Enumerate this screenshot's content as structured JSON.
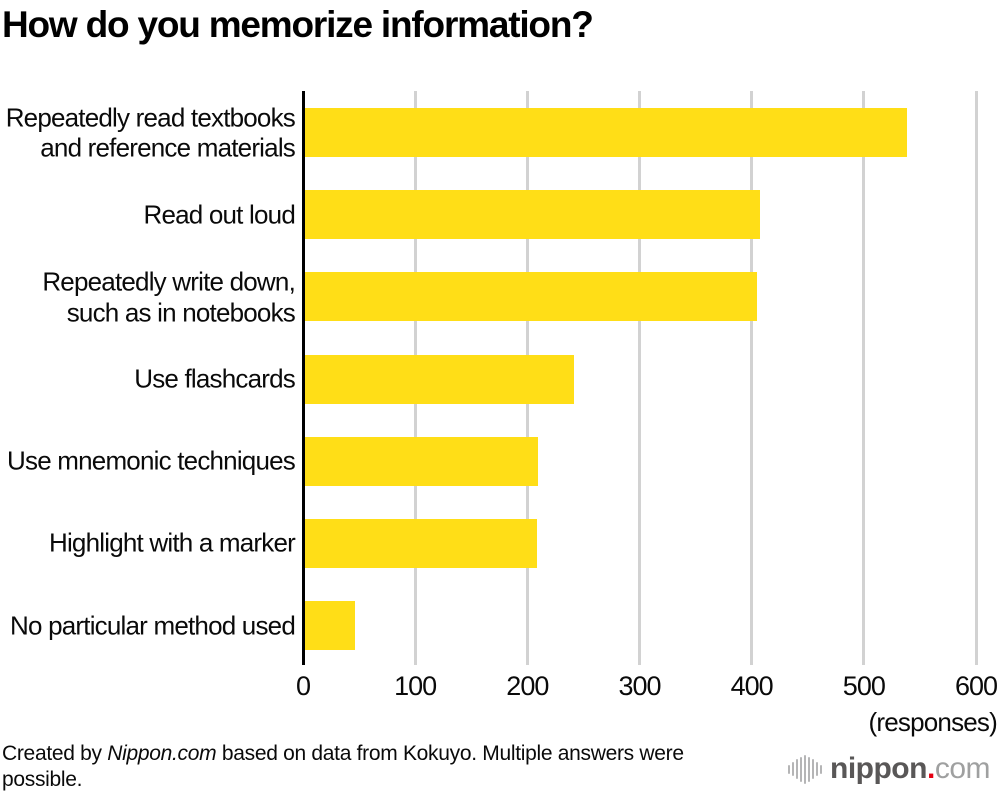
{
  "title": "How do you memorize information?",
  "chart_data": {
    "type": "bar",
    "orientation": "horizontal",
    "title": "How do you memorize information?",
    "categories": [
      "Repeatedly read textbooks\nand reference materials",
      "Read out loud",
      "Repeatedly write down,\nsuch as in notebooks",
      "Use flashcards",
      "Use mnemonic techniques",
      "Highlight with a marker",
      "No particular method used"
    ],
    "values": [
      537,
      406,
      403,
      240,
      208,
      207,
      45
    ],
    "xlim": [
      0,
      600
    ],
    "xticks": [
      0,
      100,
      200,
      300,
      400,
      500,
      600
    ],
    "xlabel": "(responses)",
    "ylabel": "",
    "grid": true,
    "legend": false,
    "bar_color": "#FFDE17",
    "grid_color": "#d2d2d2",
    "axis_color": "#000000"
  },
  "footer": {
    "prefix": "Created by ",
    "brand": "Nippon.com",
    "suffix": " based on data from Kokuyo. Multiple answers were possible."
  },
  "logo": {
    "icon": "soundwave-icon",
    "name": "nippon",
    "dot": ".",
    "tld": "com",
    "name_color": "#595757",
    "dot_color": "#e60012",
    "tld_color": "#9fa0a0",
    "wave_heights": [
      9,
      14,
      20,
      25,
      29,
      25,
      20,
      14,
      9
    ]
  }
}
